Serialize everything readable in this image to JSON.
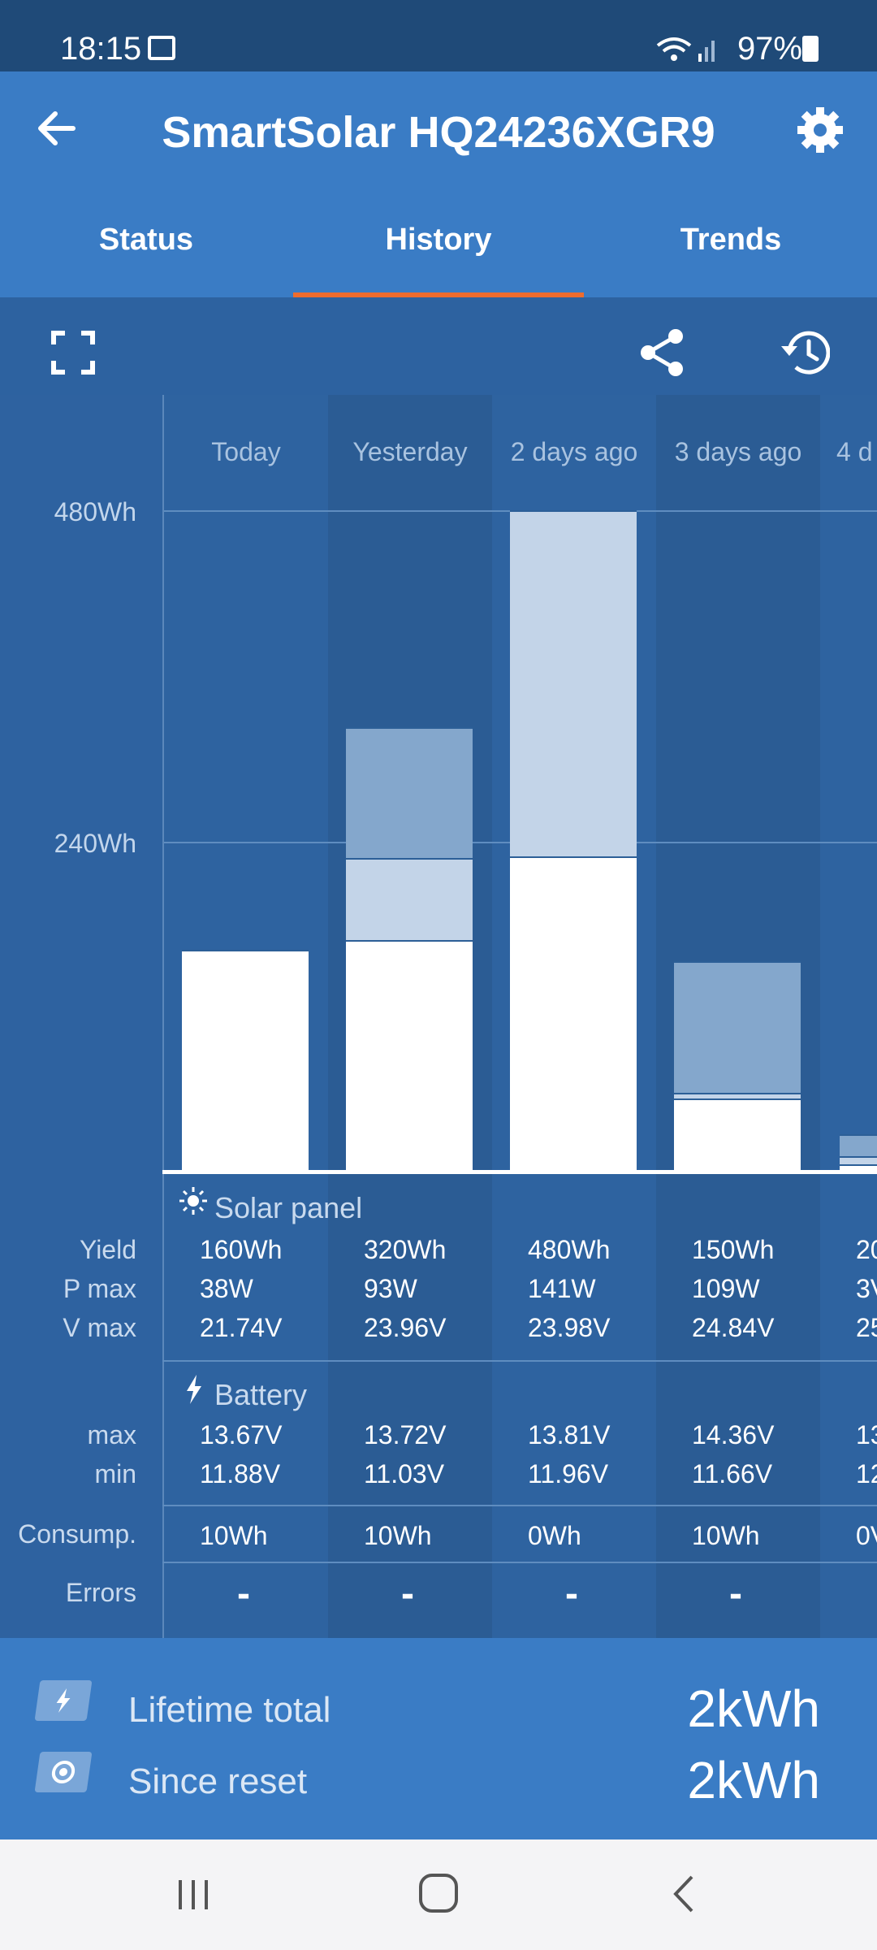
{
  "status_bar": {
    "time": "18:15",
    "battery": "97%"
  },
  "app_bar": {
    "title": "SmartSolar HQ24236XGR9"
  },
  "tabs": [
    {
      "label": "Status"
    },
    {
      "label": "History",
      "active": true
    },
    {
      "label": "Trends"
    }
  ],
  "chart_data": {
    "type": "bar",
    "categories": [
      "Today",
      "Yesterday",
      "2 days ago",
      "3 days ago",
      "4 d"
    ],
    "ylabels": [
      "480Wh",
      "240Wh"
    ],
    "ylim": [
      0,
      480
    ],
    "note": "stacked bars; white = bulk, light = absorption, mid = float (Wh)",
    "series": [
      {
        "values": [
          160,
          167,
          228,
          52,
          4
        ]
      },
      {
        "values": [
          0,
          60,
          252,
          4,
          6
        ]
      },
      {
        "values": [
          0,
          95,
          0,
          96,
          16
        ]
      }
    ]
  },
  "solar": {
    "title": "Solar panel",
    "labels": {
      "yield": "Yield",
      "pmax": "P max",
      "vmax": "V max"
    },
    "yield": [
      "160Wh",
      "320Wh",
      "480Wh",
      "150Wh",
      "20"
    ],
    "pmax": [
      "38W",
      "93W",
      "141W",
      "109W",
      "3V"
    ],
    "vmax": [
      "21.74V",
      "23.96V",
      "23.98V",
      "24.84V",
      "25"
    ]
  },
  "battery": {
    "title": "Battery",
    "labels": {
      "max": "max",
      "min": "min"
    },
    "max": [
      "13.67V",
      "13.72V",
      "13.81V",
      "14.36V",
      "13"
    ],
    "min": [
      "11.88V",
      "11.03V",
      "11.96V",
      "11.66V",
      "12"
    ]
  },
  "consumption": {
    "label": "Consump.",
    "values": [
      "10Wh",
      "10Wh",
      "0Wh",
      "10Wh",
      "0V"
    ]
  },
  "errors": {
    "label": "Errors",
    "values": [
      "-",
      "-",
      "-",
      "-"
    ]
  },
  "totals": {
    "lifetime_label": "Lifetime total",
    "lifetime_value": "2kWh",
    "reset_label": "Since reset",
    "reset_value": "2kWh"
  },
  "colors": {
    "bulk": "#ffffff",
    "absorption": "#c3d4e8",
    "float": "#84a7cc",
    "accent": "#ee6c2e"
  }
}
